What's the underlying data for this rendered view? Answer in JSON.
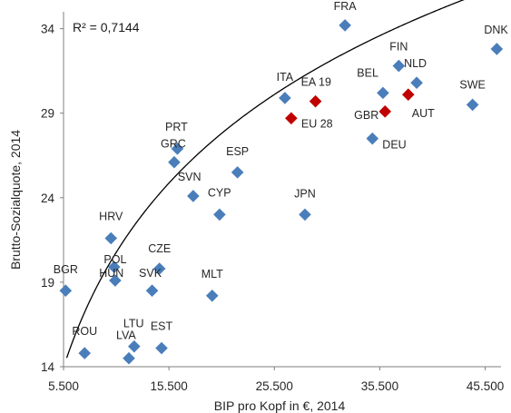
{
  "chart_data": {
    "type": "scatter",
    "xlabel": "BIP pro Kopf in €, 2014",
    "ylabel": "Brutto-Sozialquote, 2014",
    "annotation": "R² = 0,7144",
    "xlim": [
      5500,
      47000
    ],
    "ylim": [
      14,
      35
    ],
    "x_ticks": [
      5500,
      15500,
      25500,
      35500,
      45500
    ],
    "x_tick_labels": [
      "5.500",
      "15.500",
      "25.500",
      "35.500",
      "45.500"
    ],
    "y_ticks": [
      14,
      19,
      24,
      29,
      34
    ],
    "y_tick_labels": [
      "14",
      "19",
      "24",
      "29",
      "34"
    ],
    "grid": false,
    "colors": {
      "country": "#4a7ebb",
      "aggregate": "#c00000",
      "trend": "#000000"
    },
    "trendline": {
      "type": "logarithmic",
      "a": 10.5254,
      "b": -76.69
    },
    "points": [
      {
        "label": "FRA",
        "x": 32200,
        "y": 34.2,
        "group": "country"
      },
      {
        "label": "DNK",
        "x": 46600,
        "y": 32.8,
        "group": "country"
      },
      {
        "label": "FIN",
        "x": 37300,
        "y": 31.8,
        "group": "country"
      },
      {
        "label": "NLD",
        "x": 39000,
        "y": 30.8,
        "group": "country"
      },
      {
        "label": "BEL",
        "x": 35800,
        "y": 30.2,
        "group": "country"
      },
      {
        "label": "ITA",
        "x": 26500,
        "y": 29.9,
        "group": "country"
      },
      {
        "label": "EA 19",
        "x": 29400,
        "y": 29.7,
        "group": "aggregate"
      },
      {
        "label": "SWE",
        "x": 44300,
        "y": 29.5,
        "group": "country"
      },
      {
        "label": "AUT",
        "x": 38200,
        "y": 30.1,
        "group": "aggregate"
      },
      {
        "label": "GBR",
        "x": 36000,
        "y": 29.1,
        "group": "aggregate"
      },
      {
        "label": "EU 28",
        "x": 27100,
        "y": 28.7,
        "group": "aggregate"
      },
      {
        "label": "DEU",
        "x": 34800,
        "y": 27.5,
        "group": "country"
      },
      {
        "label": "PRT",
        "x": 16300,
        "y": 26.9,
        "group": "country"
      },
      {
        "label": "GRC",
        "x": 16000,
        "y": 26.1,
        "group": "country"
      },
      {
        "label": "ESP",
        "x": 22000,
        "y": 25.5,
        "group": "country"
      },
      {
        "label": "SVN",
        "x": 17800,
        "y": 24.1,
        "group": "country"
      },
      {
        "label": "CYP",
        "x": 20300,
        "y": 23.0,
        "group": "country"
      },
      {
        "label": "JPN",
        "x": 28400,
        "y": 23.0,
        "group": "country"
      },
      {
        "label": "HRV",
        "x": 10000,
        "y": 21.6,
        "group": "country"
      },
      {
        "label": "HUN",
        "x": 10300,
        "y": 19.9,
        "group": "country"
      },
      {
        "label": "CZE",
        "x": 14600,
        "y": 19.8,
        "group": "country"
      },
      {
        "label": "POL",
        "x": 10400,
        "y": 19.1,
        "group": "country"
      },
      {
        "label": "BGR",
        "x": 5700,
        "y": 18.5,
        "group": "country"
      },
      {
        "label": "SVK",
        "x": 13900,
        "y": 18.5,
        "group": "country"
      },
      {
        "label": "MLT",
        "x": 19600,
        "y": 18.2,
        "group": "country"
      },
      {
        "label": "LTU",
        "x": 12200,
        "y": 15.2,
        "group": "country"
      },
      {
        "label": "EST",
        "x": 14800,
        "y": 15.1,
        "group": "country"
      },
      {
        "label": "ROU",
        "x": 7500,
        "y": 14.8,
        "group": "country"
      },
      {
        "label": "LVA",
        "x": 11700,
        "y": 14.5,
        "group": "country"
      }
    ]
  }
}
